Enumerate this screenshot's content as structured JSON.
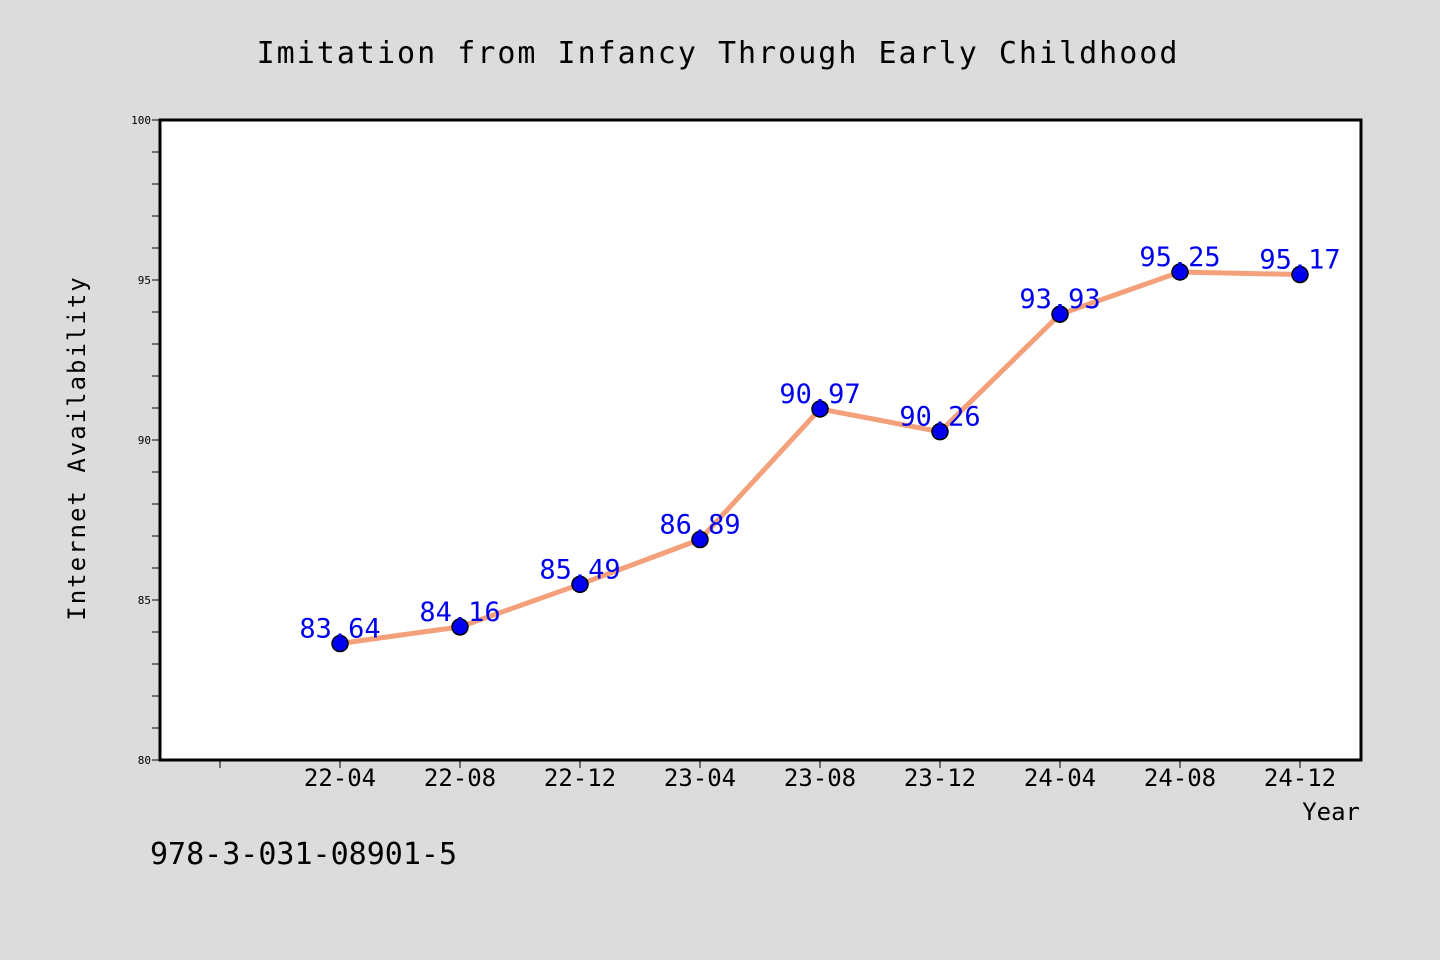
{
  "chart_data": {
    "type": "line",
    "title": "Imitation from Infancy Through Early Childhood",
    "xlabel": "Year",
    "ylabel": "Internet Availability",
    "categories": [
      "22-04",
      "22-08",
      "22-12",
      "23-04",
      "23-08",
      "23-12",
      "24-04",
      "24-08",
      "24-12"
    ],
    "series": [
      {
        "values": [
          83.64,
          84.16,
          85.49,
          86.89,
          90.97,
          90.26,
          93.93,
          95.25,
          95.17
        ]
      }
    ],
    "data_labels": [
      "83.64",
      "84.16",
      "85.49",
      "86.89",
      "90.97",
      "90.26",
      "93.93",
      "95.25",
      "95.17"
    ],
    "ylim": [
      80,
      100
    ],
    "yticks": [
      80,
      85,
      90,
      95,
      100
    ],
    "grid": false,
    "legend": "none",
    "line_color": "#f4a07a",
    "marker_color": "#0000ee",
    "label_color": "#0000ee"
  },
  "footer": {
    "isbn": "978-3-031-08901-5"
  }
}
